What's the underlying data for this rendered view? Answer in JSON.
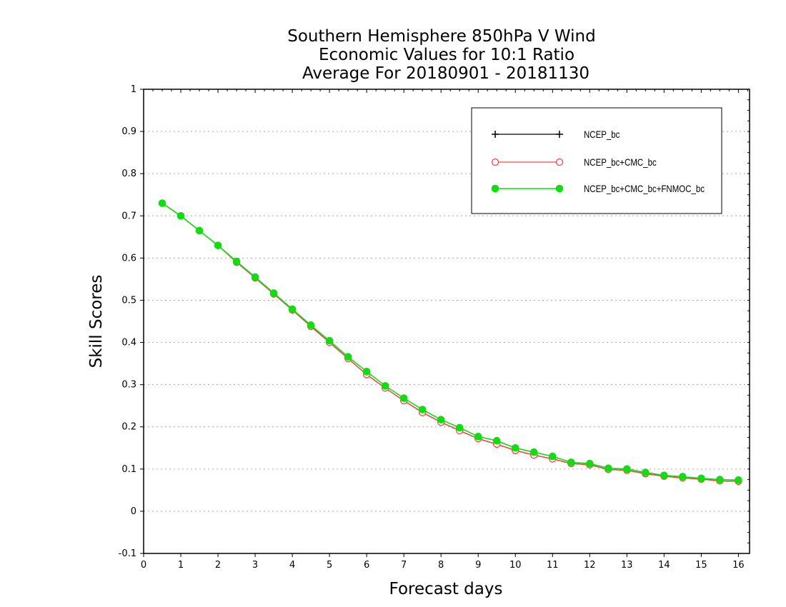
{
  "chart_data": {
    "type": "line",
    "title": [
      "Southern Hemisphere 850hPa V Wind",
      "Economic Values for 10:1 Ratio",
      "Average For 20180901 - 20181130"
    ],
    "xlabel": "Forecast days",
    "ylabel": "Skill Scores",
    "xlim": [
      0,
      16.3
    ],
    "ylim": [
      -0.1,
      1
    ],
    "xticks": [
      0,
      1,
      2,
      3,
      4,
      5,
      6,
      7,
      8,
      9,
      10,
      11,
      12,
      13,
      14,
      15,
      16
    ],
    "yticks": [
      -0.1,
      0,
      0.1,
      0.2,
      0.3,
      0.4,
      0.5,
      0.6,
      0.7,
      0.8,
      0.9,
      1
    ],
    "ytick_labels": [
      "-0.1",
      "0",
      "0.1",
      "0.2",
      "0.3",
      "0.4",
      "0.5",
      "0.6",
      "0.7",
      "0.8",
      "0.9",
      "1"
    ],
    "grid": true,
    "legend_position": "top-right",
    "x": [
      0.5,
      1,
      1.5,
      2,
      2.5,
      3,
      3.5,
      4,
      4.5,
      5,
      5.5,
      6,
      6.5,
      7,
      7.5,
      8,
      8.5,
      9,
      9.5,
      10,
      10.5,
      11,
      11.5,
      12,
      12.5,
      13,
      13.5,
      14,
      14.5,
      15,
      15.5,
      16
    ],
    "series": [
      {
        "name": "NCEP_bc",
        "color": "#000000",
        "marker": "plus",
        "values": [
          0.73,
          0.7,
          0.665,
          0.63,
          0.59,
          0.553,
          0.515,
          0.477,
          0.438,
          0.4,
          0.362,
          0.324,
          0.292,
          0.262,
          0.234,
          0.211,
          0.191,
          0.172,
          0.159,
          0.144,
          0.133,
          0.124,
          0.113,
          0.11,
          0.099,
          0.097,
          0.089,
          0.083,
          0.079,
          0.076,
          0.072,
          0.071
        ]
      },
      {
        "name": "NCEP_bc+CMC_bc",
        "color": "#ff4444",
        "marker": "open-circle",
        "values": [
          0.73,
          0.7,
          0.665,
          0.63,
          0.59,
          0.553,
          0.515,
          0.477,
          0.438,
          0.4,
          0.362,
          0.324,
          0.292,
          0.262,
          0.234,
          0.211,
          0.191,
          0.172,
          0.159,
          0.144,
          0.133,
          0.124,
          0.113,
          0.11,
          0.099,
          0.097,
          0.089,
          0.083,
          0.079,
          0.076,
          0.072,
          0.071
        ]
      },
      {
        "name": "NCEP_bc+CMC_bc+FNMOC_bc",
        "color": "#11dd11",
        "marker": "filled-circle",
        "values": [
          0.73,
          0.7,
          0.665,
          0.63,
          0.592,
          0.555,
          0.517,
          0.479,
          0.441,
          0.404,
          0.366,
          0.331,
          0.297,
          0.268,
          0.241,
          0.217,
          0.198,
          0.177,
          0.167,
          0.15,
          0.14,
          0.13,
          0.116,
          0.113,
          0.102,
          0.1,
          0.092,
          0.085,
          0.082,
          0.078,
          0.075,
          0.074
        ]
      }
    ]
  }
}
